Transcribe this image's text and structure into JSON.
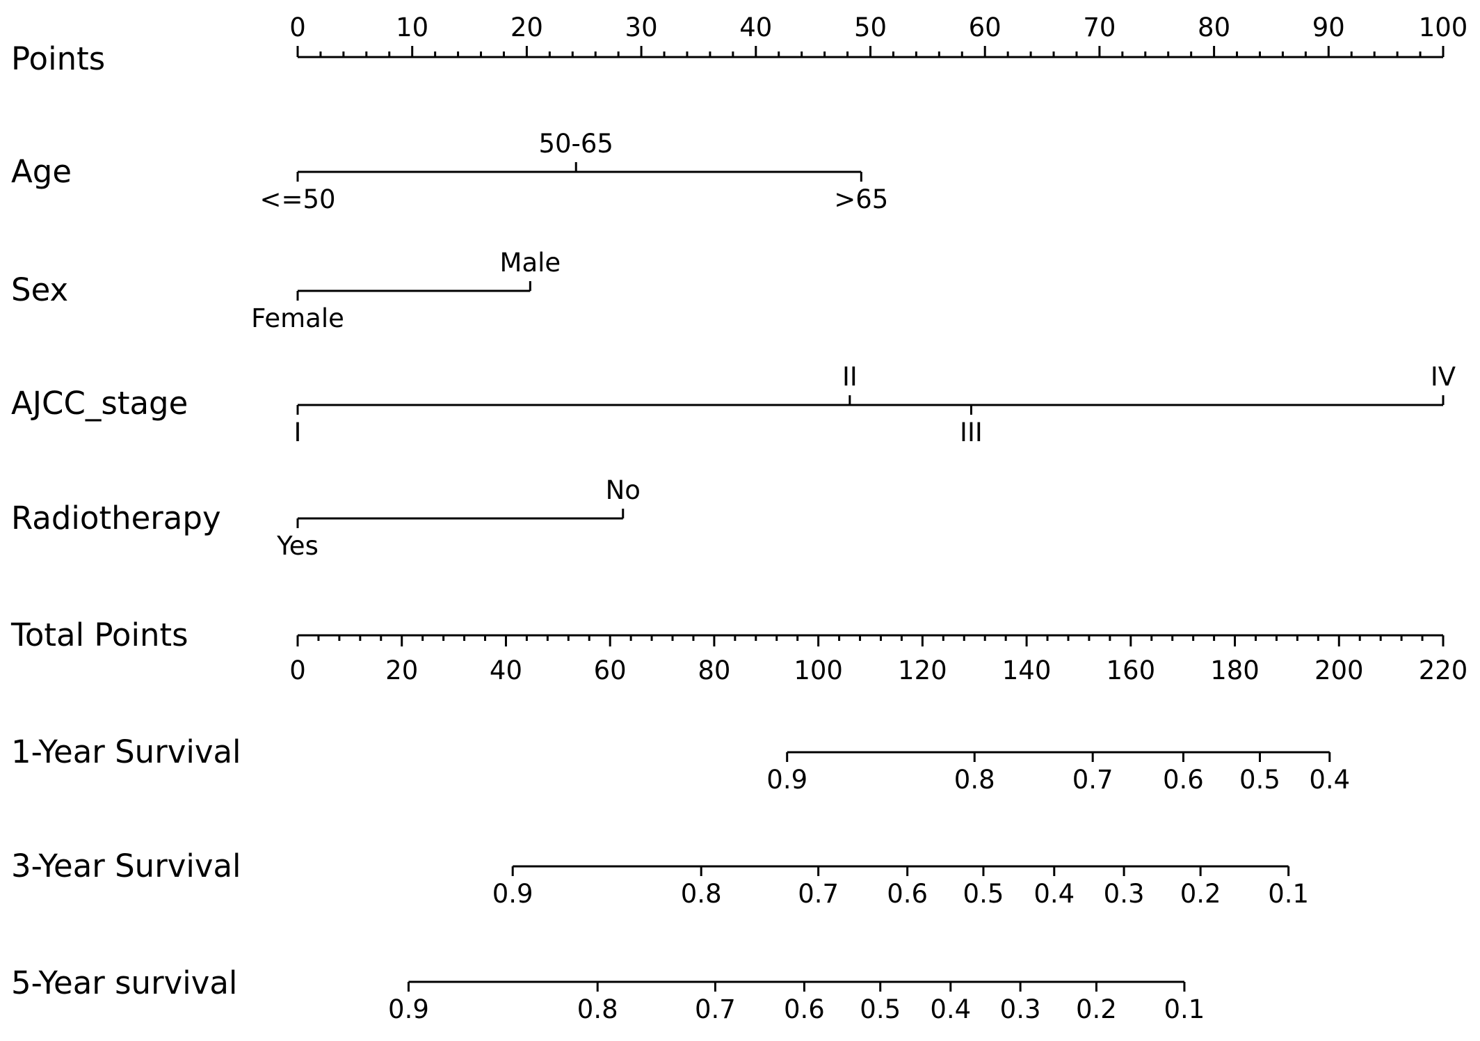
{
  "chart_data": {
    "type": "nomogram",
    "points_scale": {
      "label": "Points",
      "range": [
        0,
        100
      ],
      "labels": [
        "0",
        "10",
        "20",
        "30",
        "40",
        "50",
        "60",
        "70",
        "80",
        "90",
        "100"
      ]
    },
    "variables": [
      {
        "label": "Age",
        "levels": [
          {
            "name": "<=50",
            "points": 0
          },
          {
            "name": "50-65",
            "points": 24.3
          },
          {
            "name": ">65",
            "points": 49.2
          }
        ]
      },
      {
        "label": "Sex",
        "levels": [
          {
            "name": "Female",
            "points": 0
          },
          {
            "name": "Male",
            "points": 20.3
          }
        ]
      },
      {
        "label": "AJCC_stage",
        "levels": [
          {
            "name": "I",
            "points": 0
          },
          {
            "name": "II",
            "points": 48.2
          },
          {
            "name": "III",
            "points": 58.8
          },
          {
            "name": "IV",
            "points": 100
          }
        ]
      },
      {
        "label": "Radiotherapy",
        "levels": [
          {
            "name": "Yes",
            "points": 0
          },
          {
            "name": "No",
            "points": 28.4
          }
        ]
      }
    ],
    "total_points": {
      "label": "Total Points",
      "range": [
        0,
        220
      ],
      "labels": [
        "0",
        "20",
        "40",
        "60",
        "80",
        "100",
        "120",
        "140",
        "160",
        "180",
        "200",
        "220"
      ]
    },
    "survival_scales": [
      {
        "label": "1-Year Survival",
        "ticks": [
          {
            "label": "0.9",
            "total_points": 94.0
          },
          {
            "label": "0.8",
            "total_points": 130.0
          },
          {
            "label": "0.7",
            "total_points": 152.7
          },
          {
            "label": "0.6",
            "total_points": 170.1
          },
          {
            "label": "0.5",
            "total_points": 184.8
          },
          {
            "label": "0.4",
            "total_points": 198.2
          }
        ]
      },
      {
        "label": "3-Year Survival",
        "ticks": [
          {
            "label": "0.9",
            "total_points": 41.3
          },
          {
            "label": "0.8",
            "total_points": 77.5
          },
          {
            "label": "0.7",
            "total_points": 100.0
          },
          {
            "label": "0.6",
            "total_points": 117.1
          },
          {
            "label": "0.5",
            "total_points": 131.7
          },
          {
            "label": "0.4",
            "total_points": 145.3
          },
          {
            "label": "0.3",
            "total_points": 158.7
          },
          {
            "label": "0.2",
            "total_points": 173.4
          },
          {
            "label": "0.1",
            "total_points": 190.3
          }
        ]
      },
      {
        "label": "5-Year survival",
        "ticks": [
          {
            "label": "0.9",
            "total_points": 21.3
          },
          {
            "label": "0.8",
            "total_points": 57.6
          },
          {
            "label": "0.7",
            "total_points": 80.2
          },
          {
            "label": "0.6",
            "total_points": 97.3
          },
          {
            "label": "0.5",
            "total_points": 111.9
          },
          {
            "label": "0.4",
            "total_points": 125.4
          },
          {
            "label": "0.3",
            "total_points": 138.8
          },
          {
            "label": "0.2",
            "total_points": 153.4
          },
          {
            "label": "0.1",
            "total_points": 170.3
          }
        ]
      }
    ]
  }
}
